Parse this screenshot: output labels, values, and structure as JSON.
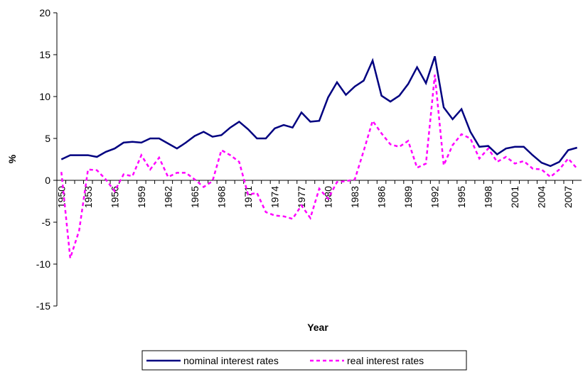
{
  "chart_data": {
    "type": "line",
    "x_label": "Year",
    "y_label": "%",
    "categories": [
      "1950",
      null,
      null,
      "1953",
      null,
      null,
      "1956",
      null,
      null,
      "1959",
      null,
      null,
      "1962",
      null,
      null,
      "1965",
      null,
      null,
      "1968",
      null,
      null,
      "1971",
      null,
      null,
      "1974",
      null,
      null,
      "1977",
      null,
      null,
      "1980",
      null,
      null,
      "1983",
      null,
      null,
      "1986",
      null,
      null,
      "1989",
      null,
      null,
      "1992",
      null,
      null,
      "1995",
      null,
      null,
      "1998",
      null,
      null,
      "2001",
      null,
      null,
      "2004",
      null,
      null,
      "2007",
      null
    ],
    "series": [
      {
        "name": "nominal interest rates",
        "color": "#000080",
        "style": "solid",
        "values": [
          2.5,
          3.0,
          3.0,
          3.0,
          2.8,
          3.4,
          3.8,
          4.5,
          4.6,
          4.5,
          5.0,
          5.0,
          4.4,
          3.8,
          4.5,
          5.3,
          5.8,
          5.2,
          5.4,
          6.3,
          7.0,
          6.1,
          5.0,
          5.0,
          6.2,
          6.6,
          6.3,
          8.1,
          7.0,
          7.1,
          9.9,
          11.7,
          10.2,
          11.2,
          11.9,
          14.3,
          10.1,
          9.4,
          10.1,
          11.5,
          13.5,
          11.6,
          14.8,
          8.7,
          7.3,
          8.5,
          5.8,
          4.0,
          4.1,
          3.1,
          3.8,
          4.0,
          4.0,
          3.0,
          2.1,
          1.7,
          2.2,
          3.6,
          3.9
        ]
      },
      {
        "name": "real interest rates",
        "color": "#ff00ff",
        "style": "dashed",
        "values": [
          1.0,
          -9.3,
          -6.0,
          1.3,
          1.2,
          0.1,
          -1.3,
          0.7,
          0.5,
          3.0,
          1.3,
          2.7,
          0.4,
          0.9,
          0.9,
          0.1,
          -0.8,
          -0.1,
          3.6,
          3.0,
          2.2,
          -1.7,
          -1.5,
          -3.8,
          -4.2,
          -4.3,
          -4.6,
          -3.0,
          -4.5,
          -1.0,
          -2.2,
          -0.2,
          -0.1,
          0.1,
          3.5,
          7.1,
          5.6,
          4.3,
          4.0,
          4.7,
          1.5,
          2.0,
          12.6,
          1.8,
          4.2,
          5.5,
          5.0,
          2.6,
          3.8,
          2.2,
          2.8,
          2.0,
          2.3,
          1.4,
          1.3,
          0.4,
          1.3,
          2.6,
          1.4
        ]
      }
    ],
    "ylim": [
      -15,
      20
    ],
    "yticks": [
      -15,
      -10,
      -5,
      0,
      5,
      10,
      15,
      20
    ],
    "legend": "bottom"
  }
}
